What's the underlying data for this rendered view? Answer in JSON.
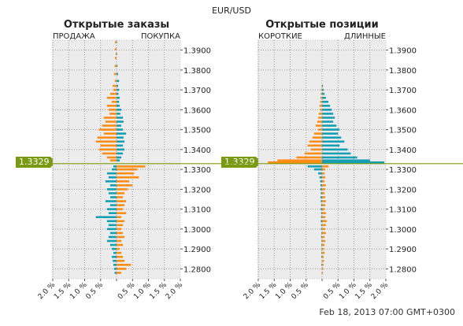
{
  "header": {
    "symbol": "EUR/USD",
    "timestamp": "Feb 18, 2013 07:00 GMT+0300"
  },
  "current_price": "1.3329",
  "colors": {
    "cyan": "#14a0b4",
    "orange": "#ff8c14",
    "price_line": "#7a9a12",
    "panel_bg": "#ececec"
  },
  "chart_data": [
    {
      "type": "bar",
      "title": "Открытые заказы",
      "left_label": "ПРОДАЖА",
      "right_label": "ПОКУПКА",
      "price_axis_ticks": [
        "1.3900",
        "1.3800",
        "1.3700",
        "1.3600",
        "1.3500",
        "1.3400",
        "1.3300",
        "1.3200",
        "1.3100",
        "1.3000",
        "1.2900",
        "1.2800"
      ],
      "percent_axis_ticks": [
        "2.0 %",
        "1.5 %",
        "1.0 %",
        "0.5 %",
        "",
        "0.5 %",
        "1.0 %",
        "1.5 %",
        "2.0 %"
      ],
      "y_range": [
        1.275,
        1.395
      ],
      "x_range_percent": [
        -2.0,
        2.0
      ],
      "current_price": 1.3329,
      "series": [
        {
          "name": "ПРОДАЖА",
          "color_note": "above price orange, below price cyan",
          "levels": [
            [
              1.394,
              0.05
            ],
            [
              1.3905,
              0.05
            ],
            [
              1.388,
              0.03
            ],
            [
              1.386,
              0.05
            ],
            [
              1.382,
              0.06
            ],
            [
              1.378,
              0.08
            ],
            [
              1.3745,
              0.06
            ],
            [
              1.372,
              0.12
            ],
            [
              1.37,
              0.1
            ],
            [
              1.368,
              0.2
            ],
            [
              1.366,
              0.3
            ],
            [
              1.364,
              0.15
            ],
            [
              1.362,
              0.3
            ],
            [
              1.36,
              0.25
            ],
            [
              1.358,
              0.22
            ],
            [
              1.356,
              0.4
            ],
            [
              1.354,
              0.35
            ],
            [
              1.352,
              0.45
            ],
            [
              1.35,
              0.55
            ],
            [
              1.348,
              0.4
            ],
            [
              1.346,
              0.6
            ],
            [
              1.344,
              0.65
            ],
            [
              1.342,
              0.5
            ],
            [
              1.34,
              0.55
            ],
            [
              1.338,
              0.45
            ],
            [
              1.336,
              0.3
            ],
            [
              1.3345,
              0.2
            ],
            [
              1.3315,
              0.1
            ],
            [
              1.33,
              0.15
            ],
            [
              1.328,
              0.3
            ],
            [
              1.326,
              0.25
            ],
            [
              1.324,
              0.35
            ],
            [
              1.322,
              0.2
            ],
            [
              1.32,
              0.3
            ],
            [
              1.318,
              0.25
            ],
            [
              1.316,
              0.2
            ],
            [
              1.314,
              0.35
            ],
            [
              1.312,
              0.2
            ],
            [
              1.31,
              0.3
            ],
            [
              1.308,
              0.25
            ],
            [
              1.306,
              0.65
            ],
            [
              1.304,
              0.3
            ],
            [
              1.302,
              0.25
            ],
            [
              1.3,
              0.3
            ],
            [
              1.298,
              0.2
            ],
            [
              1.296,
              0.25
            ],
            [
              1.294,
              0.3
            ],
            [
              1.292,
              0.2
            ],
            [
              1.29,
              0.15
            ],
            [
              1.288,
              0.1
            ],
            [
              1.286,
              0.15
            ],
            [
              1.284,
              0.12
            ],
            [
              1.282,
              0.1
            ],
            [
              1.28,
              0.08
            ],
            [
              1.278,
              0.06
            ]
          ]
        },
        {
          "name": "ПОКУПКА",
          "color_note": "above price cyan, below price orange",
          "levels": [
            [
              1.394,
              0.01
            ],
            [
              1.388,
              0.02
            ],
            [
              1.382,
              0.03
            ],
            [
              1.378,
              0.05
            ],
            [
              1.3745,
              0.08
            ],
            [
              1.372,
              0.05
            ],
            [
              1.37,
              0.08
            ],
            [
              1.368,
              0.06
            ],
            [
              1.366,
              0.1
            ],
            [
              1.364,
              0.08
            ],
            [
              1.362,
              0.1
            ],
            [
              1.36,
              0.15
            ],
            [
              1.358,
              0.12
            ],
            [
              1.356,
              0.2
            ],
            [
              1.354,
              0.22
            ],
            [
              1.352,
              0.15
            ],
            [
              1.35,
              0.2
            ],
            [
              1.348,
              0.3
            ],
            [
              1.346,
              0.22
            ],
            [
              1.344,
              0.25
            ],
            [
              1.342,
              0.2
            ],
            [
              1.34,
              0.25
            ],
            [
              1.338,
              0.2
            ],
            [
              1.336,
              0.15
            ],
            [
              1.3345,
              0.1
            ],
            [
              1.3315,
              0.9
            ],
            [
              1.33,
              0.65
            ],
            [
              1.328,
              0.55
            ],
            [
              1.326,
              0.7
            ],
            [
              1.324,
              0.4
            ],
            [
              1.322,
              0.5
            ],
            [
              1.32,
              0.35
            ],
            [
              1.318,
              0.25
            ],
            [
              1.316,
              0.2
            ],
            [
              1.314,
              0.3
            ],
            [
              1.312,
              0.25
            ],
            [
              1.31,
              0.2
            ],
            [
              1.308,
              0.3
            ],
            [
              1.306,
              0.15
            ],
            [
              1.304,
              0.25
            ],
            [
              1.302,
              0.2
            ],
            [
              1.3,
              0.15
            ],
            [
              1.298,
              0.2
            ],
            [
              1.296,
              0.25
            ],
            [
              1.294,
              0.15
            ],
            [
              1.292,
              0.2
            ],
            [
              1.29,
              0.1
            ],
            [
              1.288,
              0.15
            ],
            [
              1.286,
              0.2
            ],
            [
              1.284,
              0.25
            ],
            [
              1.282,
              0.45
            ],
            [
              1.28,
              0.3
            ],
            [
              1.278,
              0.15
            ]
          ]
        }
      ]
    },
    {
      "type": "bar",
      "title": "Открытые позиции",
      "left_label": "КОРОТКИЕ",
      "right_label": "ДЛИННЫЕ",
      "price_axis_ticks": [
        "1.3900",
        "1.3800",
        "1.3700",
        "1.3600",
        "1.3500",
        "1.3400",
        "1.3300",
        "1.3200",
        "1.3100",
        "1.3000",
        "1.2900",
        "1.2800"
      ],
      "percent_axis_ticks": [
        "2.0 %",
        "1.5 %",
        "1.0 %",
        "0.5 %",
        "",
        "0.5 %",
        "1.0 %",
        "1.5 %",
        "2.0 %"
      ],
      "y_range": [
        1.275,
        1.395
      ],
      "x_range_percent": [
        -2.0,
        2.0
      ],
      "current_price": 1.3329,
      "series": [
        {
          "name": "КОРОТКИЕ",
          "color_note": "above price orange, below price cyan",
          "levels": [
            [
              1.372,
              0.02
            ],
            [
              1.37,
              0.03
            ],
            [
              1.368,
              0.04
            ],
            [
              1.366,
              0.05
            ],
            [
              1.364,
              0.06
            ],
            [
              1.362,
              0.08
            ],
            [
              1.36,
              0.07
            ],
            [
              1.358,
              0.1
            ],
            [
              1.356,
              0.12
            ],
            [
              1.354,
              0.15
            ],
            [
              1.352,
              0.2
            ],
            [
              1.35,
              0.12
            ],
            [
              1.348,
              0.25
            ],
            [
              1.346,
              0.3
            ],
            [
              1.344,
              0.4
            ],
            [
              1.342,
              0.45
            ],
            [
              1.34,
              0.35
            ],
            [
              1.338,
              0.55
            ],
            [
              1.336,
              0.8
            ],
            [
              1.3345,
              1.4
            ],
            [
              1.3335,
              1.7
            ],
            [
              1.3315,
              0.45
            ],
            [
              1.33,
              0.25
            ],
            [
              1.328,
              0.12
            ],
            [
              1.326,
              0.08
            ],
            [
              1.324,
              0.06
            ],
            [
              1.322,
              0.05
            ],
            [
              1.32,
              0.05
            ],
            [
              1.318,
              0.04
            ],
            [
              1.316,
              0.05
            ],
            [
              1.314,
              0.04
            ],
            [
              1.312,
              0.03
            ],
            [
              1.31,
              0.04
            ],
            [
              1.308,
              0.03
            ],
            [
              1.306,
              0.03
            ],
            [
              1.304,
              0.04
            ],
            [
              1.302,
              0.03
            ],
            [
              1.3,
              0.03
            ],
            [
              1.298,
              0.02
            ],
            [
              1.296,
              0.03
            ],
            [
              1.294,
              0.02
            ],
            [
              1.292,
              0.02
            ],
            [
              1.29,
              0.02
            ],
            [
              1.288,
              0.02
            ],
            [
              1.286,
              0.02
            ],
            [
              1.284,
              0.01
            ],
            [
              1.282,
              0.02
            ],
            [
              1.28,
              0.01
            ],
            [
              1.278,
              0.01
            ]
          ]
        },
        {
          "name": "ДЛИННЫЕ",
          "color_note": "above price cyan, below price orange",
          "levels": [
            [
              1.372,
              0.03
            ],
            [
              1.37,
              0.05
            ],
            [
              1.368,
              0.08
            ],
            [
              1.366,
              0.12
            ],
            [
              1.364,
              0.2
            ],
            [
              1.362,
              0.25
            ],
            [
              1.36,
              0.3
            ],
            [
              1.358,
              0.35
            ],
            [
              1.356,
              0.4
            ],
            [
              1.354,
              0.35
            ],
            [
              1.352,
              0.45
            ],
            [
              1.35,
              0.55
            ],
            [
              1.348,
              0.5
            ],
            [
              1.346,
              0.6
            ],
            [
              1.344,
              0.7
            ],
            [
              1.342,
              0.55
            ],
            [
              1.34,
              0.8
            ],
            [
              1.338,
              0.9
            ],
            [
              1.336,
              1.1
            ],
            [
              1.3345,
              1.5
            ],
            [
              1.3335,
              1.95
            ],
            [
              1.3315,
              0.2
            ],
            [
              1.33,
              0.1
            ],
            [
              1.328,
              0.08
            ],
            [
              1.326,
              0.1
            ],
            [
              1.324,
              0.08
            ],
            [
              1.322,
              0.12
            ],
            [
              1.32,
              0.1
            ],
            [
              1.318,
              0.08
            ],
            [
              1.316,
              0.1
            ],
            [
              1.314,
              0.12
            ],
            [
              1.312,
              0.1
            ],
            [
              1.31,
              0.08
            ],
            [
              1.308,
              0.12
            ],
            [
              1.306,
              0.1
            ],
            [
              1.304,
              0.15
            ],
            [
              1.302,
              0.12
            ],
            [
              1.3,
              0.1
            ],
            [
              1.298,
              0.12
            ],
            [
              1.296,
              0.08
            ],
            [
              1.294,
              0.1
            ],
            [
              1.292,
              0.08
            ],
            [
              1.29,
              0.06
            ],
            [
              1.288,
              0.08
            ],
            [
              1.286,
              0.05
            ],
            [
              1.284,
              0.06
            ],
            [
              1.282,
              0.05
            ],
            [
              1.28,
              0.04
            ],
            [
              1.278,
              0.03
            ]
          ]
        }
      ]
    }
  ]
}
